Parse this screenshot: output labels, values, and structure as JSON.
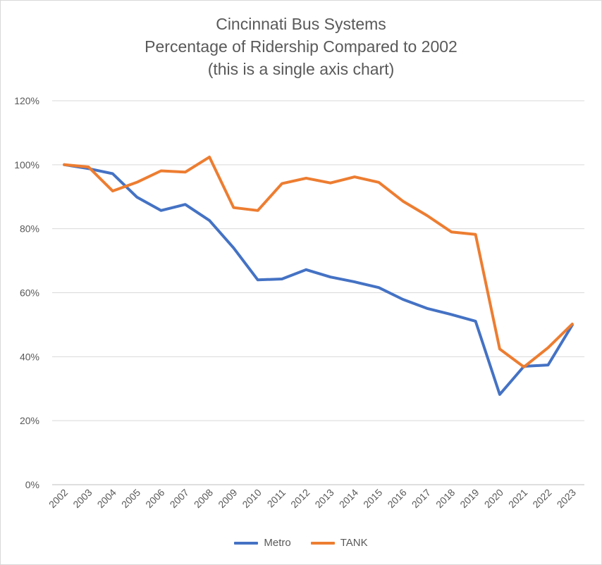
{
  "chart_data": {
    "type": "line",
    "title_lines": [
      "Cincinnati Bus Systems",
      "Percentage of Ridership Compared to 2002",
      "(this is a single axis chart)"
    ],
    "x": [
      "2002",
      "2003",
      "2004",
      "2005",
      "2006",
      "2007",
      "2008",
      "2009",
      "2010",
      "2011",
      "2012",
      "2013",
      "2014",
      "2015",
      "2016",
      "2017",
      "2018",
      "2019",
      "2020",
      "2021",
      "2022",
      "2023"
    ],
    "y_ticks": [
      "0%",
      "20%",
      "40%",
      "60%",
      "80%",
      "100%",
      "120%"
    ],
    "ylim": [
      0,
      120
    ],
    "grid": true,
    "legend_position": "bottom",
    "series": [
      {
        "name": "Metro",
        "color": "#4472C4",
        "values": [
          100,
          98.8,
          97.2,
          89.9,
          85.7,
          87.6,
          82.6,
          74.0,
          64.0,
          64.3,
          67.2,
          64.9,
          63.4,
          61.6,
          57.9,
          55.1,
          53.2,
          51.1,
          28.2,
          37.0,
          37.4,
          49.9
        ]
      },
      {
        "name": "TANK",
        "color": "#ED7D31",
        "values": [
          100,
          99.3,
          91.8,
          94.5,
          98.1,
          97.7,
          102.4,
          86.6,
          85.7,
          94.1,
          95.8,
          94.3,
          96.2,
          94.5,
          88.6,
          84.1,
          79.0,
          78.2,
          42.4,
          36.8,
          42.8,
          50.2
        ]
      }
    ]
  }
}
